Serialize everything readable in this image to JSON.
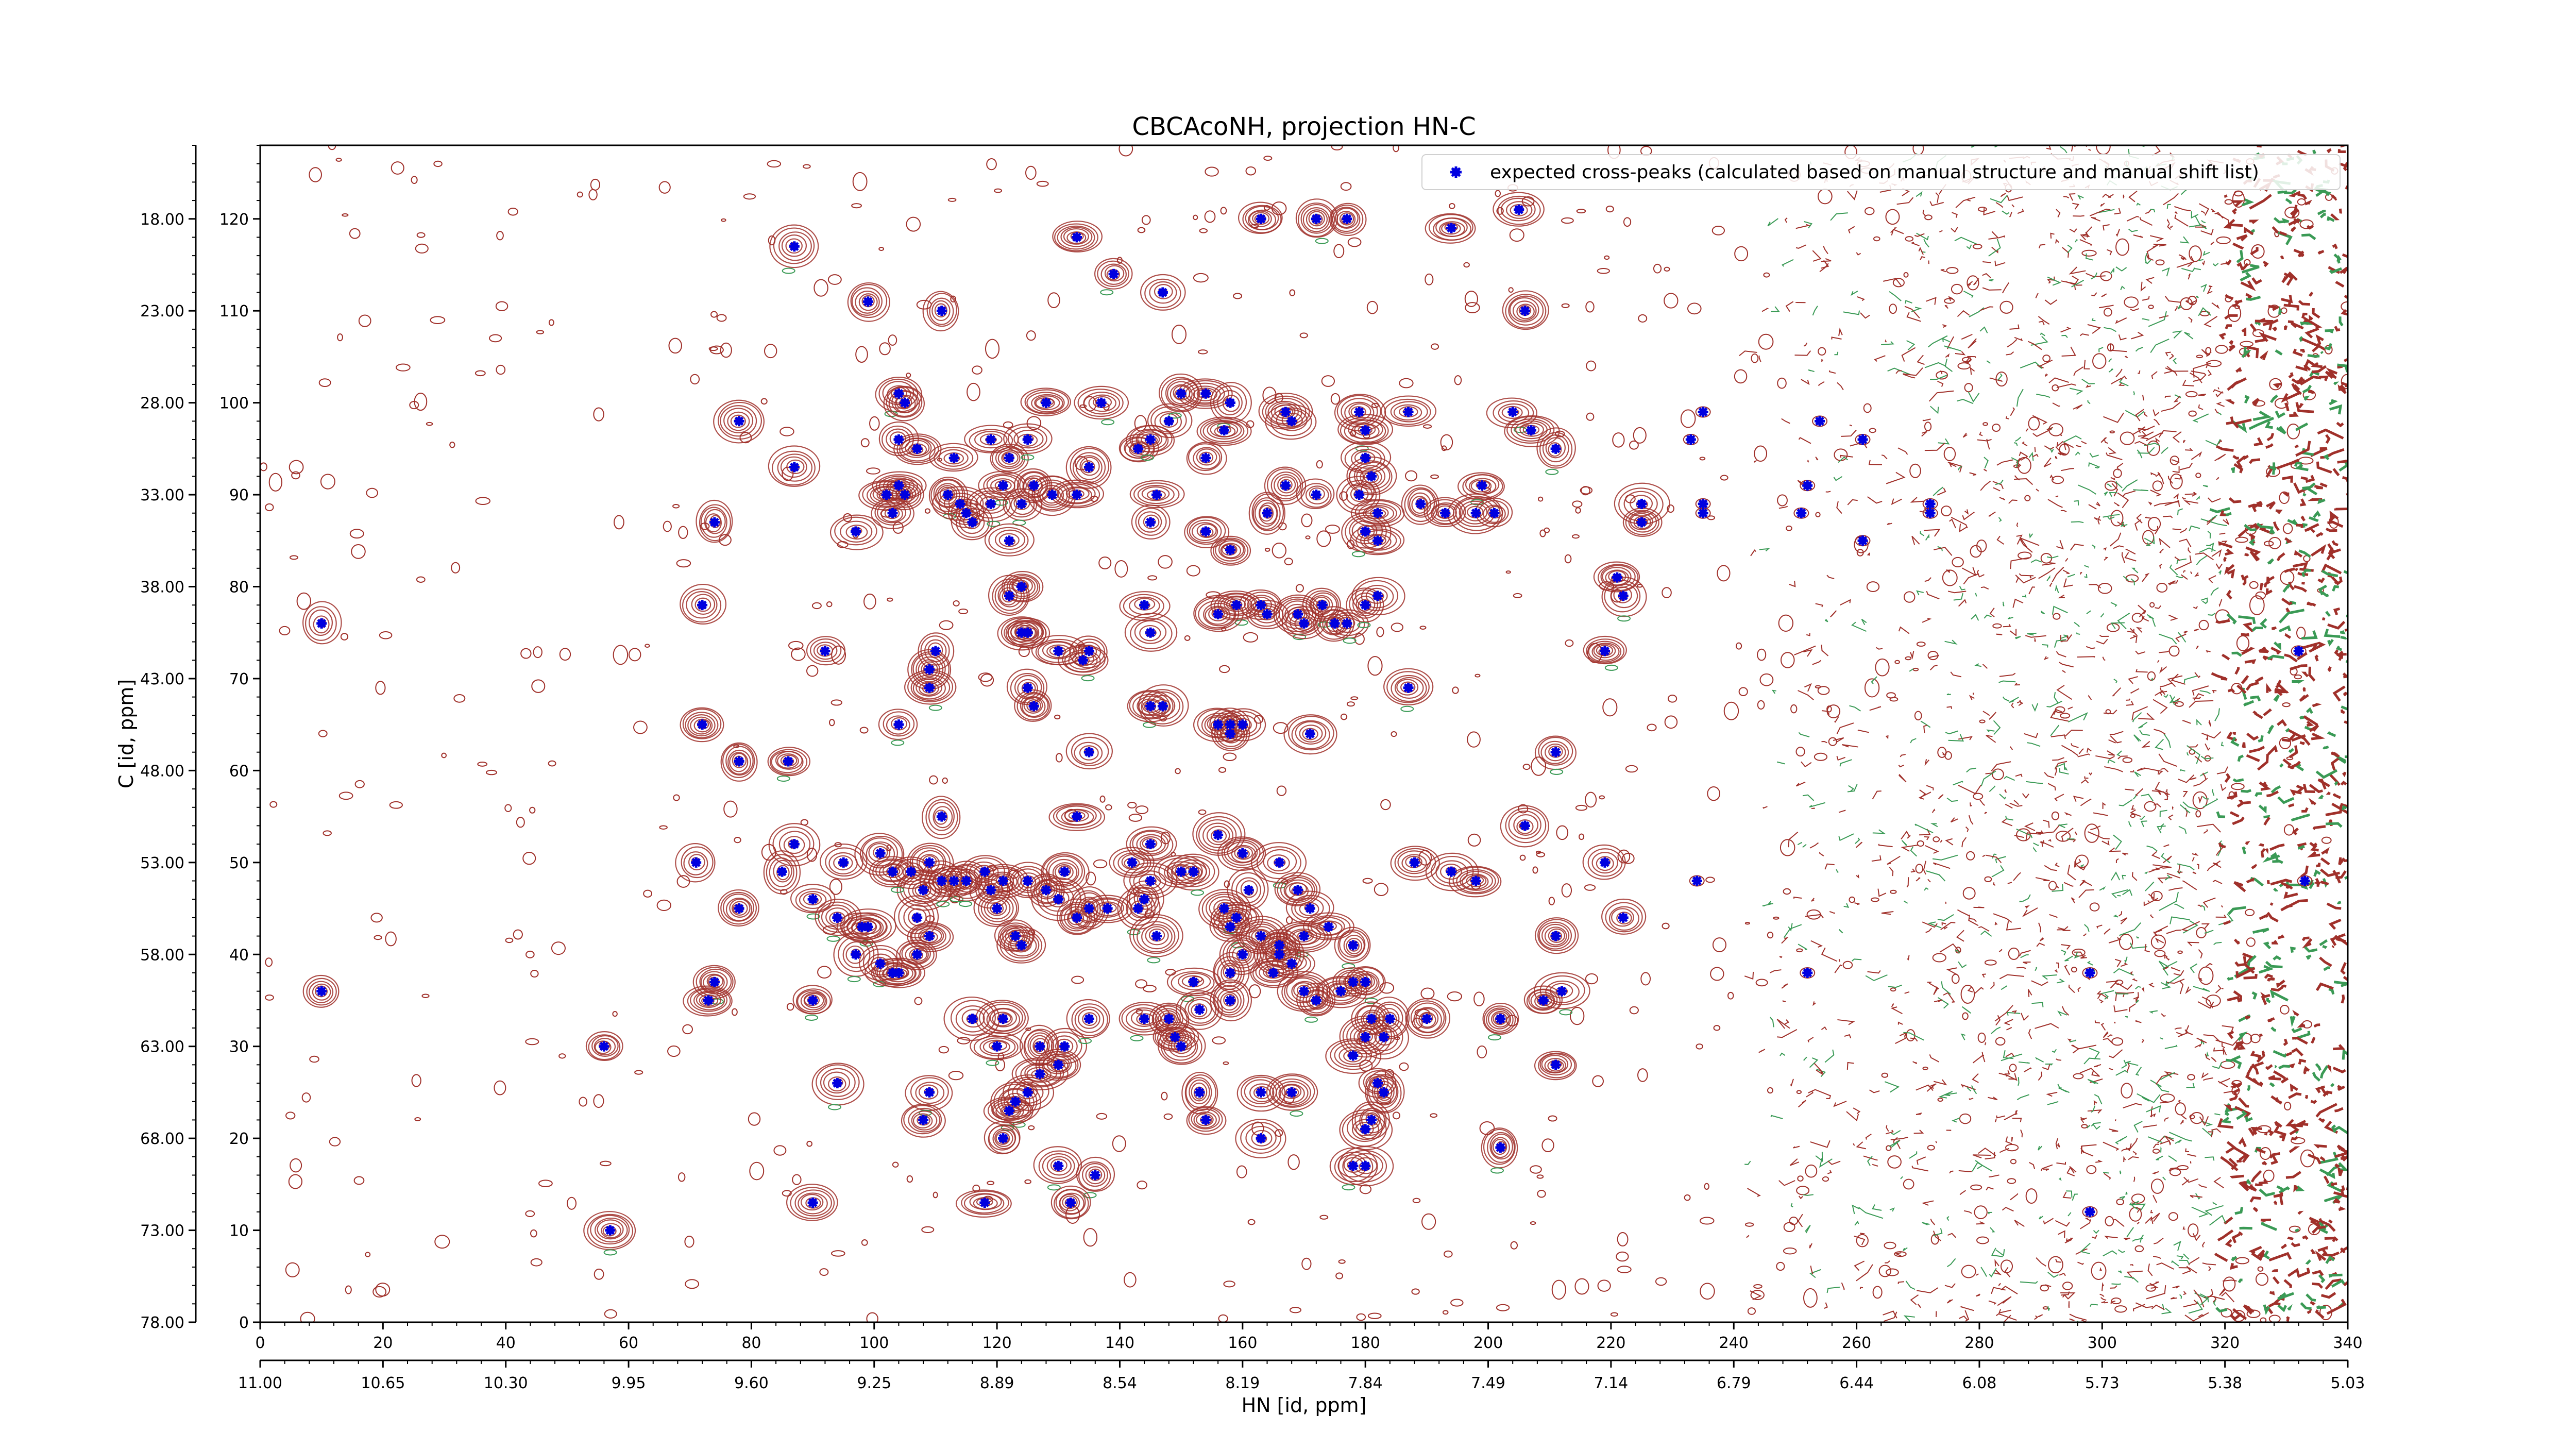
{
  "chart_data": {
    "type": "scatter",
    "title": "CBCAcoNH, projection HN-C",
    "xlabel": "HN [id, ppm]",
    "ylabel": "C [id, ppm]",
    "grid": false,
    "legend_position": "top-right",
    "xlim": [
      0,
      340
    ],
    "ylim": [
      0,
      128
    ],
    "x_ticks_index": [
      "0",
      "20",
      "40",
      "60",
      "80",
      "100",
      "120",
      "140",
      "160",
      "180",
      "200",
      "220",
      "240",
      "260",
      "280",
      "300",
      "320",
      "340"
    ],
    "x_ticks_ppm": [
      "11.00",
      "10.65",
      "10.30",
      "9.95",
      "9.60",
      "9.25",
      "8.89",
      "8.54",
      "8.19",
      "7.84",
      "7.49",
      "7.14",
      "6.79",
      "6.44",
      "6.08",
      "5.73",
      "5.38",
      "5.03"
    ],
    "y_ticks_index": [
      "0",
      "10",
      "20",
      "30",
      "40",
      "50",
      "60",
      "70",
      "80",
      "90",
      "100",
      "110",
      "120"
    ],
    "y_ticks_ppm": [
      "78.00",
      "73.00",
      "68.00",
      "63.00",
      "58.00",
      "53.00",
      "48.00",
      "43.00",
      "38.00",
      "33.00",
      "28.00",
      "23.00",
      "18.00"
    ],
    "colors": {
      "contour_positive": "#a0302a",
      "contour_negative": "#3a9a55",
      "peak": "#0000e0"
    },
    "series": [
      {
        "name": "expected cross-peaks (calculated based on manual structure and manual shift list)",
        "points": [
          [
            87,
            117
          ],
          [
            133,
            118
          ],
          [
            139,
            114
          ],
          [
            147,
            112
          ],
          [
            163,
            120
          ],
          [
            172,
            120
          ],
          [
            177,
            120
          ],
          [
            194,
            119
          ],
          [
            205,
            121
          ],
          [
            99,
            111
          ],
          [
            111,
            110
          ],
          [
            206,
            110
          ],
          [
            78,
            98
          ],
          [
            87,
            93
          ],
          [
            97,
            86
          ],
          [
            102,
            90
          ],
          [
            104,
            101
          ],
          [
            105,
            100
          ],
          [
            104,
            96
          ],
          [
            104,
            91
          ],
          [
            105,
            90
          ],
          [
            107,
            95
          ],
          [
            112,
            90
          ],
          [
            113,
            94
          ],
          [
            114,
            89
          ],
          [
            115,
            88
          ],
          [
            116,
            87
          ],
          [
            119,
            96
          ],
          [
            119,
            89
          ],
          [
            121,
            91
          ],
          [
            122,
            94
          ],
          [
            124,
            89
          ],
          [
            125,
            96
          ],
          [
            126,
            91
          ],
          [
            129,
            90
          ],
          [
            133,
            90
          ],
          [
            135,
            93
          ],
          [
            128,
            100
          ],
          [
            137,
            100
          ],
          [
            143,
            95
          ],
          [
            145,
            96
          ],
          [
            146,
            90
          ],
          [
            148,
            98
          ],
          [
            150,
            101
          ],
          [
            154,
            101
          ],
          [
            154,
            94
          ],
          [
            158,
            100
          ],
          [
            157,
            97
          ],
          [
            167,
            99
          ],
          [
            168,
            98
          ],
          [
            179,
            99
          ],
          [
            187,
            99
          ],
          [
            167,
            91
          ],
          [
            172,
            90
          ],
          [
            180,
            97
          ],
          [
            180,
            94
          ],
          [
            181,
            92
          ],
          [
            182,
            88
          ],
          [
            182,
            85
          ],
          [
            180,
            86
          ],
          [
            179,
            90
          ],
          [
            189,
            89
          ],
          [
            199,
            91
          ],
          [
            198,
            88
          ],
          [
            201,
            88
          ],
          [
            193,
            88
          ],
          [
            204,
            99
          ],
          [
            207,
            97
          ],
          [
            211,
            95
          ],
          [
            74,
            87
          ],
          [
            103,
            88
          ],
          [
            122,
            85
          ],
          [
            145,
            87
          ],
          [
            154,
            86
          ],
          [
            158,
            84
          ],
          [
            164,
            88
          ],
          [
            225,
            89
          ],
          [
            225,
            87
          ],
          [
            221,
            81
          ],
          [
            222,
            79
          ],
          [
            233,
            96
          ],
          [
            235,
            99
          ],
          [
            235,
            89
          ],
          [
            235,
            88
          ],
          [
            251,
            88
          ],
          [
            252,
            91
          ],
          [
            254,
            98
          ],
          [
            261,
            96
          ],
          [
            261,
            85
          ],
          [
            272,
            88
          ],
          [
            272,
            89
          ],
          [
            10,
            76
          ],
          [
            72,
            78
          ],
          [
            92,
            73
          ],
          [
            110,
            73
          ],
          [
            109,
            71
          ],
          [
            109,
            69
          ],
          [
            122,
            79
          ],
          [
            124,
            80
          ],
          [
            124,
            75
          ],
          [
            125,
            75
          ],
          [
            145,
            75
          ],
          [
            144,
            78
          ],
          [
            159,
            78
          ],
          [
            156,
            77
          ],
          [
            163,
            78
          ],
          [
            164,
            77
          ],
          [
            169,
            77
          ],
          [
            170,
            76
          ],
          [
            173,
            78
          ],
          [
            175,
            76
          ],
          [
            177,
            76
          ],
          [
            180,
            78
          ],
          [
            182,
            79
          ],
          [
            187,
            69
          ],
          [
            219,
            73
          ],
          [
            130,
            73
          ],
          [
            135,
            73
          ],
          [
            134,
            72
          ],
          [
            125,
            69
          ],
          [
            126,
            67
          ],
          [
            72,
            65
          ],
          [
            104,
            65
          ],
          [
            78,
            61
          ],
          [
            86,
            61
          ],
          [
            145,
            67
          ],
          [
            147,
            67
          ],
          [
            156,
            65
          ],
          [
            158,
            65
          ],
          [
            160,
            65
          ],
          [
            171,
            64
          ],
          [
            135,
            62
          ],
          [
            158,
            64
          ],
          [
            211,
            62
          ],
          [
            71,
            50
          ],
          [
            87,
            52
          ],
          [
            95,
            50
          ],
          [
            101,
            51
          ],
          [
            111,
            55
          ],
          [
            85,
            49
          ],
          [
            78,
            45
          ],
          [
            90,
            46
          ],
          [
            94,
            44
          ],
          [
            98,
            43
          ],
          [
            99,
            43
          ],
          [
            101,
            39
          ],
          [
            107,
            44
          ],
          [
            108,
            47
          ],
          [
            103,
            49
          ],
          [
            106,
            49
          ],
          [
            109,
            50
          ],
          [
            111,
            48
          ],
          [
            113,
            48
          ],
          [
            115,
            48
          ],
          [
            118,
            49
          ],
          [
            119,
            47
          ],
          [
            121,
            48
          ],
          [
            120,
            45
          ],
          [
            123,
            42
          ],
          [
            124,
            41
          ],
          [
            125,
            48
          ],
          [
            128,
            47
          ],
          [
            131,
            49
          ],
          [
            130,
            46
          ],
          [
            133,
            44
          ],
          [
            135,
            45
          ],
          [
            138,
            45
          ],
          [
            133,
            55
          ],
          [
            145,
            52
          ],
          [
            142,
            50
          ],
          [
            145,
            48
          ],
          [
            150,
            49
          ],
          [
            144,
            46
          ],
          [
            143,
            45
          ],
          [
            146,
            42
          ],
          [
            152,
            49
          ],
          [
            156,
            53
          ],
          [
            160,
            51
          ],
          [
            157,
            45
          ],
          [
            158,
            43
          ],
          [
            159,
            44
          ],
          [
            161,
            47
          ],
          [
            166,
            50
          ],
          [
            169,
            47
          ],
          [
            171,
            45
          ],
          [
            170,
            42
          ],
          [
            174,
            43
          ],
          [
            178,
            41
          ],
          [
            168,
            39
          ],
          [
            163,
            42
          ],
          [
            166,
            41
          ],
          [
            188,
            50
          ],
          [
            194,
            49
          ],
          [
            198,
            48
          ],
          [
            206,
            54
          ],
          [
            219,
            50
          ],
          [
            211,
            42
          ],
          [
            222,
            44
          ],
          [
            234,
            48
          ],
          [
            10,
            36
          ],
          [
            56,
            30
          ],
          [
            74,
            37
          ],
          [
            73,
            35
          ],
          [
            90,
            35
          ],
          [
            97,
            40
          ],
          [
            104,
            38
          ],
          [
            103,
            38
          ],
          [
            109,
            42
          ],
          [
            107,
            40
          ],
          [
            116,
            33
          ],
          [
            121,
            33
          ],
          [
            120,
            30
          ],
          [
            127,
            30
          ],
          [
            131,
            30
          ],
          [
            130,
            28
          ],
          [
            135,
            33
          ],
          [
            144,
            33
          ],
          [
            148,
            33
          ],
          [
            149,
            31
          ],
          [
            150,
            30
          ],
          [
            152,
            37
          ],
          [
            153,
            34
          ],
          [
            158,
            35
          ],
          [
            158,
            38
          ],
          [
            160,
            40
          ],
          [
            165,
            38
          ],
          [
            166,
            40
          ],
          [
            170,
            36
          ],
          [
            172,
            35
          ],
          [
            176,
            36
          ],
          [
            178,
            37
          ],
          [
            180,
            37
          ],
          [
            181,
            33
          ],
          [
            180,
            31
          ],
          [
            178,
            29
          ],
          [
            183,
            31
          ],
          [
            184,
            33
          ],
          [
            190,
            33
          ],
          [
            202,
            33
          ],
          [
            212,
            36
          ],
          [
            209,
            35
          ],
          [
            211,
            28
          ],
          [
            252,
            38
          ],
          [
            298,
            38
          ],
          [
            94,
            26
          ],
          [
            109,
            25
          ],
          [
            108,
            22
          ],
          [
            125,
            25
          ],
          [
            127,
            27
          ],
          [
            123,
            24
          ],
          [
            122,
            23
          ],
          [
            121,
            20
          ],
          [
            153,
            25
          ],
          [
            154,
            22
          ],
          [
            163,
            25
          ],
          [
            168,
            25
          ],
          [
            181,
            22
          ],
          [
            183,
            25
          ],
          [
            182,
            26
          ],
          [
            180,
            21
          ],
          [
            163,
            20
          ],
          [
            178,
            17
          ],
          [
            202,
            19
          ],
          [
            130,
            17
          ],
          [
            136,
            16
          ],
          [
            132,
            13
          ],
          [
            118,
            13
          ],
          [
            180,
            17
          ],
          [
            90,
            13
          ],
          [
            57,
            10
          ],
          [
            298,
            12
          ],
          [
            333,
            48
          ],
          [
            332,
            73
          ]
        ]
      }
    ]
  }
}
